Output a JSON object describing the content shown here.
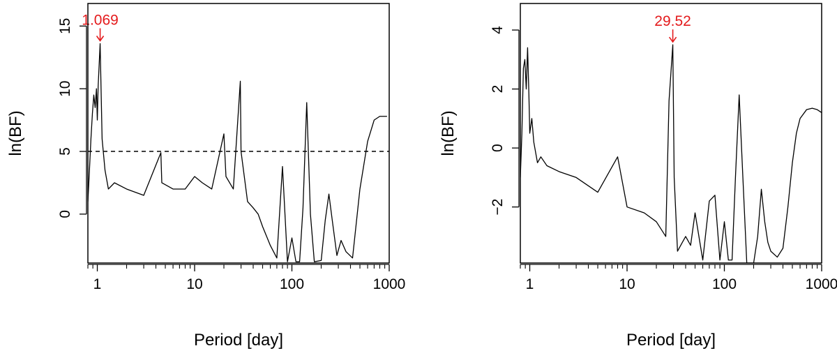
{
  "colors": {
    "axis": "#000000",
    "series": "#000000",
    "annotation": "#e41a1c",
    "threshold": "#000000"
  },
  "chart_data": [
    {
      "type": "line",
      "title": "",
      "xlabel": "Period [day]",
      "ylabel": "ln(BF)",
      "x_scale": "log",
      "xlim": [
        0.8,
        1000
      ],
      "ylim": [
        -3.9,
        16.8
      ],
      "x_major_ticks": [
        1,
        10,
        100,
        1000
      ],
      "x_tick_labels": [
        "1",
        "10",
        "100",
        "1000"
      ],
      "y_ticks": [
        0,
        5,
        10,
        15
      ],
      "y_tick_labels": [
        "0",
        "5",
        "10",
        "15"
      ],
      "grid": false,
      "legend": "none",
      "threshold_line": {
        "y": 5,
        "style": "dashed"
      },
      "annotation": {
        "x": 1.069,
        "y": 13.6,
        "label": "1.069",
        "marker": "arrow"
      },
      "series": [
        {
          "x": [
            0.8,
            0.83,
            0.86,
            0.89,
            0.92,
            0.95,
            0.98,
            1.0,
            1.02,
            1.069,
            1.12,
            1.2,
            1.3,
            1.5,
            2.0,
            3.0,
            4.5,
            4.6,
            6.0,
            8.0,
            10.0,
            12.0,
            15.0,
            20.0,
            21.0,
            25.0,
            29.5,
            30.0,
            35.0,
            40.0,
            45.0,
            50.0,
            60.0,
            70.0,
            80.0,
            90.0,
            100.0,
            110.0,
            120.0,
            130.0,
            142.0,
            155.0,
            170.0,
            200.0,
            220.0,
            240.0,
            260.0,
            290.0,
            320.0,
            360.0,
            420.0,
            500.0,
            600.0,
            700.0,
            800.0,
            900.0,
            950.0
          ],
          "y": [
            1.0,
            3.5,
            6.0,
            8.0,
            9.5,
            8.5,
            10.0,
            7.5,
            10.2,
            13.6,
            6.0,
            3.5,
            2.0,
            2.5,
            2.0,
            1.5,
            4.9,
            2.5,
            2.0,
            2.0,
            3.0,
            2.5,
            2.0,
            6.4,
            3.0,
            2.0,
            10.6,
            5.0,
            1.0,
            0.5,
            0.0,
            -1.0,
            -2.5,
            -3.5,
            3.8,
            -3.8,
            -1.9,
            -3.8,
            -3.8,
            0.5,
            8.9,
            0.0,
            -3.8,
            -3.7,
            -0.5,
            1.6,
            -0.5,
            -3.3,
            -2.1,
            -3.0,
            -3.5,
            2.0,
            5.8,
            7.5,
            7.8,
            7.8,
            7.8
          ]
        }
      ]
    },
    {
      "type": "line",
      "title": "",
      "xlabel": "Period [day]",
      "ylabel": "ln(BF)",
      "x_scale": "log",
      "xlim": [
        0.8,
        1000
      ],
      "ylim": [
        -3.9,
        4.9
      ],
      "x_major_ticks": [
        1,
        10,
        100,
        1000
      ],
      "x_tick_labels": [
        "1",
        "10",
        "100",
        "1000"
      ],
      "y_ticks": [
        -2,
        0,
        2,
        4
      ],
      "y_tick_labels": [
        "−2",
        "0",
        "2",
        "4"
      ],
      "grid": false,
      "legend": "none",
      "annotation": {
        "x": 29.52,
        "y": 3.5,
        "label": "29.52",
        "marker": "arrow"
      },
      "series": [
        {
          "x": [
            0.8,
            0.83,
            0.86,
            0.89,
            0.92,
            0.95,
            0.98,
            1.0,
            1.05,
            1.1,
            1.2,
            1.3,
            1.5,
            2.0,
            3.0,
            5.0,
            8.0,
            10.0,
            15.0,
            20.0,
            25.0,
            27.0,
            29.52,
            30.5,
            33.0,
            37.0,
            40.0,
            45.0,
            50.0,
            60.0,
            70.0,
            80.0,
            90.0,
            100.0,
            110.0,
            120.0,
            130.0,
            142.0,
            155.0,
            170.0,
            200.0,
            220.0,
            240.0,
            260.0,
            280.0,
            300.0,
            350.0,
            400.0,
            450.0,
            500.0,
            550.0,
            600.0,
            700.0,
            800.0,
            900.0,
            1000.0
          ],
          "y": [
            -1.0,
            0.5,
            2.7,
            3.0,
            2.0,
            3.4,
            1.8,
            0.5,
            1.0,
            0.2,
            -0.5,
            -0.3,
            -0.6,
            -0.8,
            -1.0,
            -1.5,
            -0.3,
            -2.0,
            -2.2,
            -2.5,
            -3.0,
            1.6,
            3.5,
            -1.0,
            -3.5,
            -3.2,
            -3.0,
            -3.3,
            -2.2,
            -3.8,
            -1.8,
            -1.6,
            -3.8,
            -2.5,
            -3.8,
            -3.8,
            -1.0,
            1.8,
            -1.0,
            -3.9,
            -3.9,
            -3.0,
            -1.4,
            -2.5,
            -3.2,
            -3.5,
            -3.7,
            -3.4,
            -2.0,
            -0.5,
            0.5,
            1.0,
            1.3,
            1.35,
            1.3,
            1.2
          ]
        }
      ]
    }
  ]
}
